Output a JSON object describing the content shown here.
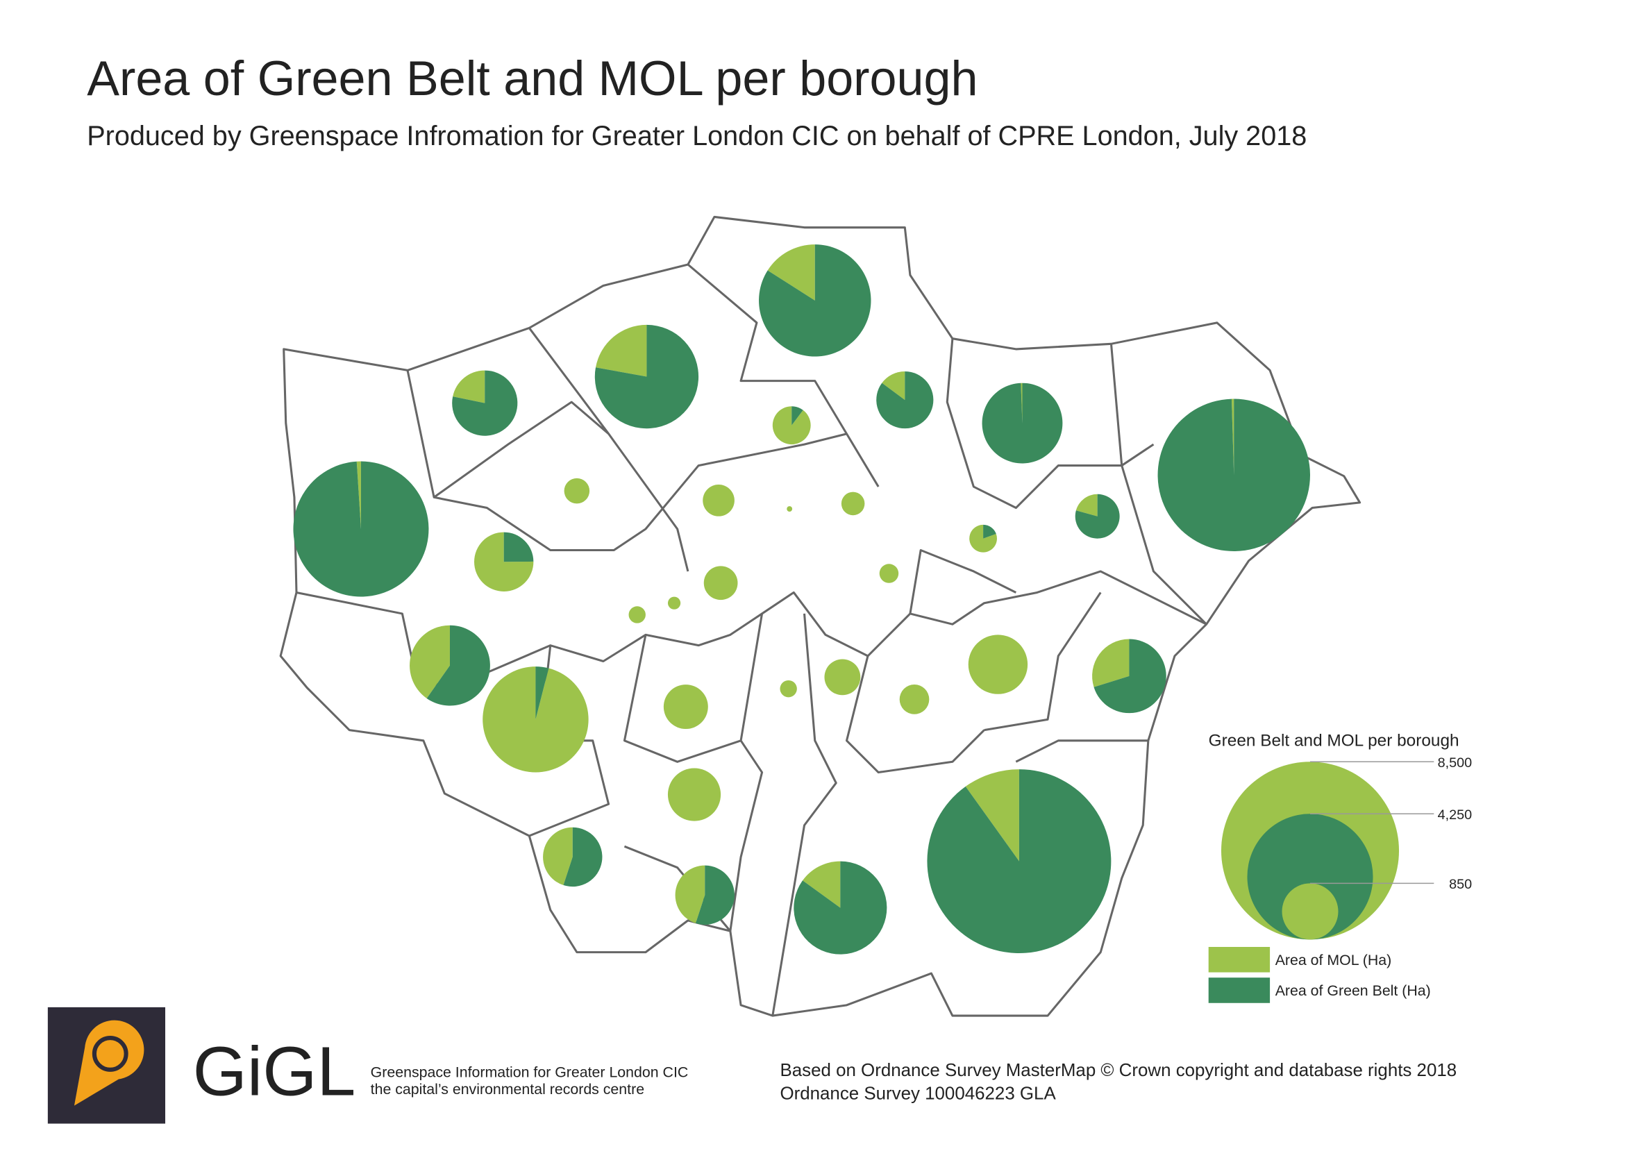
{
  "title": "Area of Green Belt and MOL per borough",
  "subtitle": "Produced by Greenspace Infromation for Greater London CIC on behalf of CPRE London, July 2018",
  "chart_data": {
    "type": "pie",
    "legend_title": "Green Belt and MOL per borough",
    "size_ticks": [
      {
        "value": 8500,
        "label": "8,500"
      },
      {
        "value": 4250,
        "label": "4,250"
      },
      {
        "value": 850,
        "label": "850"
      }
    ],
    "series": [
      {
        "name": "Area of MOL (Ha)",
        "color": "#9dc34b",
        "values": [
          540,
          640,
          250,
          50,
          30,
          900,
          10,
          130,
          110,
          350,
          173,
          710,
          270,
          8,
          146,
          98,
          165,
          308,
          77,
          43,
          700,
          2890,
          530,
          77,
          348,
          236,
          945,
          440,
          752,
          425,
          425,
          350
        ]
      },
      {
        "name": "Area of Green Belt (Ha)",
        "color": "#3a8a5c",
        "values": [
          2840,
          2250,
          900,
          4880,
          6215,
          8200,
          1730,
          745,
          420,
          40,
          0,
          235,
          0,
          0,
          0,
          0,
          40,
          0,
          0,
          0,
          1040,
          120,
          0,
          0,
          0,
          0,
          0,
          1035,
          0,
          520,
          520,
          1980
        ]
      }
    ]
  },
  "footer": {
    "logo_text": "GiGL",
    "org_name": "Greenspace Information for Greater London CIC",
    "org_tagline": "the capital’s environmental records centre",
    "credit_line1": "Based on Ordnance Survey MasterMap © Crown copyright and database rights 2018",
    "credit_line2": "Ordnance Survey 100046223 GLA"
  }
}
